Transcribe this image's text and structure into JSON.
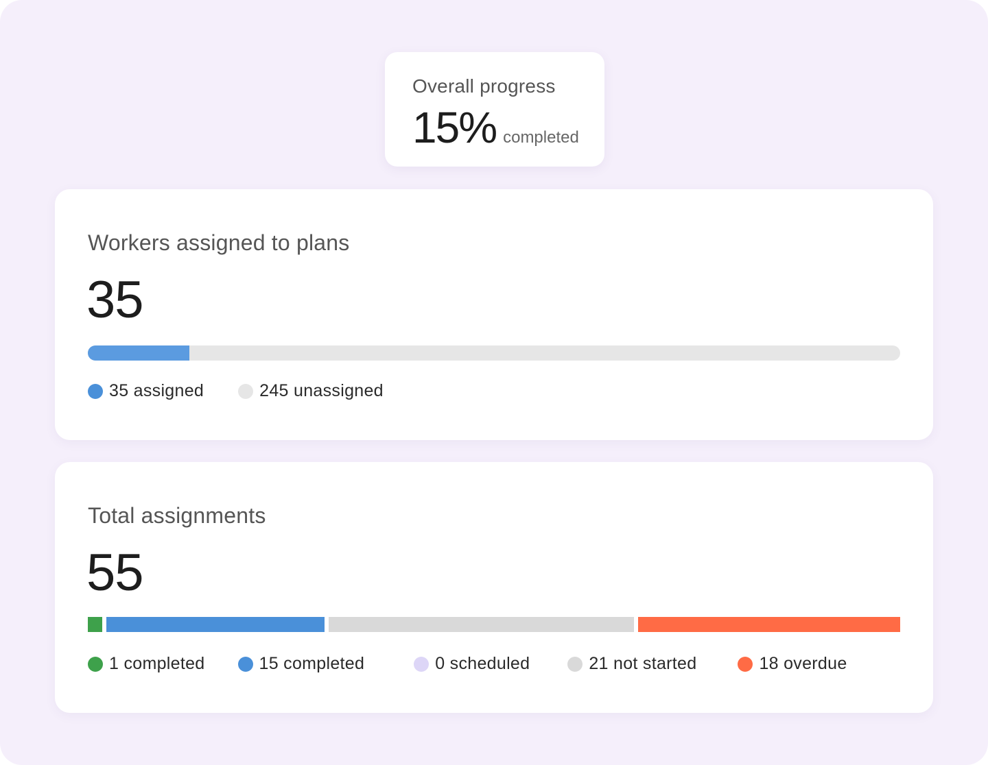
{
  "overall": {
    "title": "Overall progress",
    "value": "15%",
    "suffix": "completed"
  },
  "workers": {
    "title": "Workers assigned to plans",
    "value": "35",
    "progress_percent": 12.5,
    "bar_color": "#5b9be0",
    "track_color": "#e6e6e6",
    "legend": [
      {
        "label": "35 assigned",
        "color": "#4a90d9"
      },
      {
        "label": "245 unassigned",
        "color": "#e6e6e6"
      }
    ]
  },
  "assignments": {
    "title": "Total assignments",
    "value": "55",
    "segments": [
      {
        "count": 1,
        "color": "#3ea14b"
      },
      {
        "count": 15,
        "color": "#4a90d9"
      },
      {
        "count": 0,
        "color": "#ddd6f7"
      },
      {
        "count": 21,
        "color": "#d9d9d9"
      },
      {
        "count": 18,
        "color": "#ff6b45"
      }
    ],
    "legend": [
      {
        "label": "1 completed",
        "color": "#3ea14b"
      },
      {
        "label": "15 completed",
        "color": "#4a90d9"
      },
      {
        "label": "0 scheduled",
        "color": "#ddd6f7"
      },
      {
        "label": "21 not started",
        "color": "#d9d9d9"
      },
      {
        "label": "18 overdue",
        "color": "#ff6b45"
      }
    ]
  }
}
